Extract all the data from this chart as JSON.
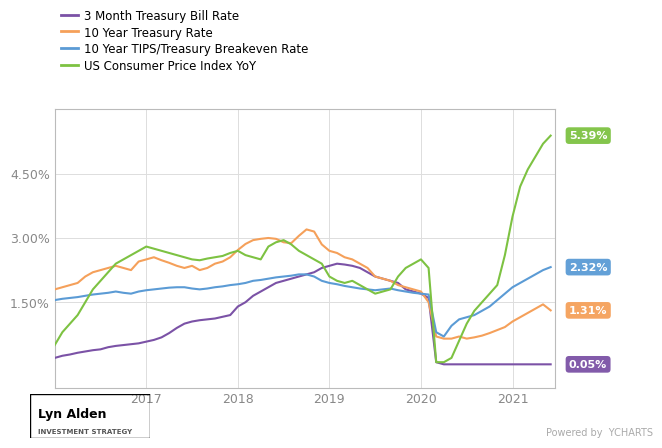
{
  "title": "",
  "legend_labels": [
    "3 Month Treasury Bill Rate",
    "10 Year Treasury Rate",
    "10 Year TIPS/Treasury Breakeven Rate",
    "US Consumer Price Index YoY"
  ],
  "line_colors": [
    "#7B52A6",
    "#F5A05A",
    "#5B9BD5",
    "#7DC242"
  ],
  "end_labels": [
    "0.05%",
    "1.31%",
    "2.32%",
    "5.39%"
  ],
  "end_label_colors": [
    "#7B52A6",
    "#F5A05A",
    "#5B9BD5",
    "#7DC242"
  ],
  "ytick_labels": [
    "4.50%",
    "3.00%",
    "1.50%"
  ],
  "ytick_values": [
    4.5,
    3.0,
    1.5
  ],
  "ylim": [
    -0.5,
    6.0
  ],
  "xtick_labels": [
    "2017",
    "2018",
    "2019",
    "2020",
    "2021"
  ],
  "bg_color": "#FFFFFF",
  "plot_bg_color": "#FFFFFF",
  "grid_color": "#DDDDDD"
}
